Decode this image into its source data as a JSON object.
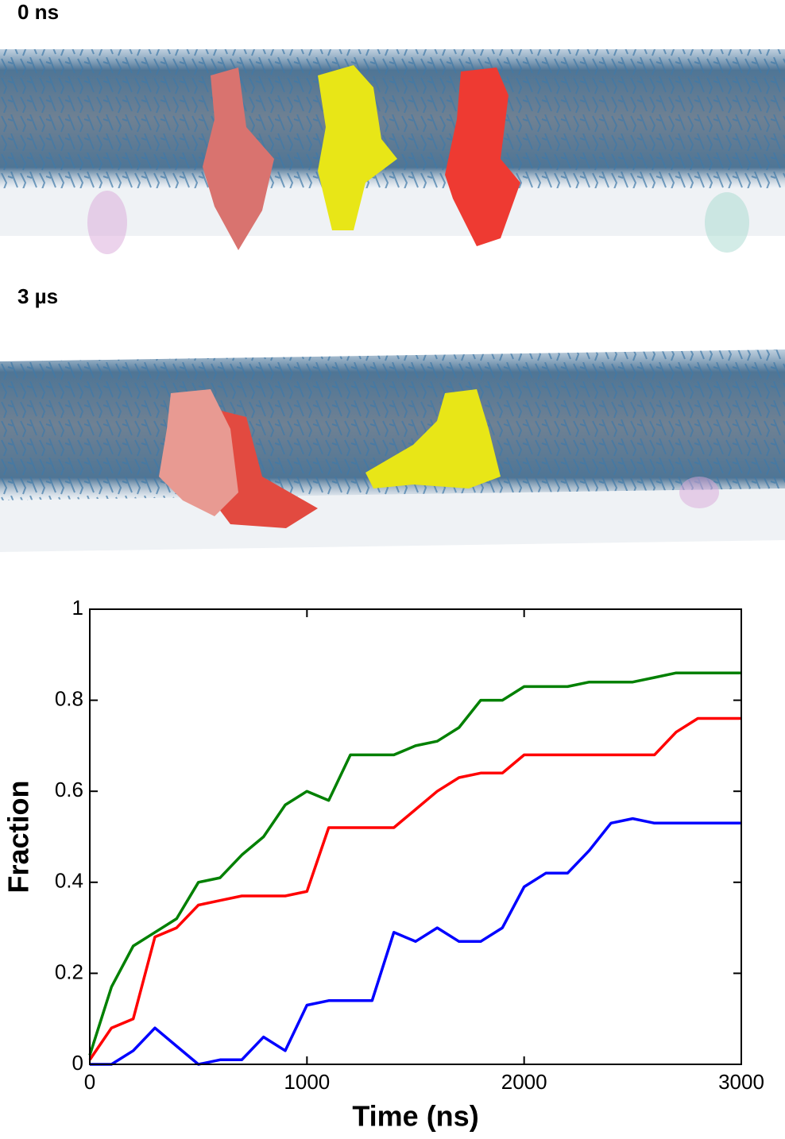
{
  "panels": [
    {
      "label": "0 ns"
    },
    {
      "label": "3 µs"
    }
  ],
  "chart_data": {
    "type": "line",
    "xlabel": "Time (ns)",
    "ylabel": "Fraction",
    "x": [
      0,
      100,
      200,
      300,
      400,
      500,
      600,
      700,
      800,
      900,
      1000,
      1100,
      1200,
      1300,
      1400,
      1500,
      1600,
      1700,
      1800,
      1900,
      2000,
      2100,
      2200,
      2300,
      2400,
      2500,
      2600,
      2700,
      2800,
      2900,
      3000
    ],
    "series": [
      {
        "color": "#008000",
        "values": [
          0.02,
          0.17,
          0.26,
          0.29,
          0.32,
          0.4,
          0.41,
          0.46,
          0.5,
          0.57,
          0.6,
          0.58,
          0.68,
          0.68,
          0.68,
          0.7,
          0.71,
          0.74,
          0.8,
          0.8,
          0.83,
          0.83,
          0.83,
          0.84,
          0.84,
          0.84,
          0.85,
          0.86,
          0.86,
          0.86,
          0.86
        ]
      },
      {
        "color": "#ff0000",
        "values": [
          0.01,
          0.08,
          0.1,
          0.28,
          0.3,
          0.35,
          0.36,
          0.37,
          0.37,
          0.37,
          0.38,
          0.52,
          0.52,
          0.52,
          0.52,
          0.56,
          0.6,
          0.63,
          0.64,
          0.64,
          0.68,
          0.68,
          0.68,
          0.68,
          0.68,
          0.68,
          0.68,
          0.73,
          0.76,
          0.76,
          0.76
        ]
      },
      {
        "color": "#0000ff",
        "values": [
          0,
          0,
          0.03,
          0.08,
          0.04,
          0,
          0.01,
          0.01,
          0.06,
          0.03,
          0.13,
          0.14,
          0.14,
          0.14,
          0.29,
          0.27,
          0.3,
          0.27,
          0.27,
          0.3,
          0.39,
          0.42,
          0.42,
          0.47,
          0.53,
          0.54,
          0.53,
          0.53,
          0.53,
          0.53,
          0.53
        ]
      }
    ],
    "xlim": [
      0,
      3000
    ],
    "xticks": [
      0,
      1000,
      2000,
      3000
    ],
    "ylim": [
      0,
      1
    ],
    "yticks": [
      0,
      0.2,
      0.4,
      0.6,
      0.8,
      1
    ]
  }
}
